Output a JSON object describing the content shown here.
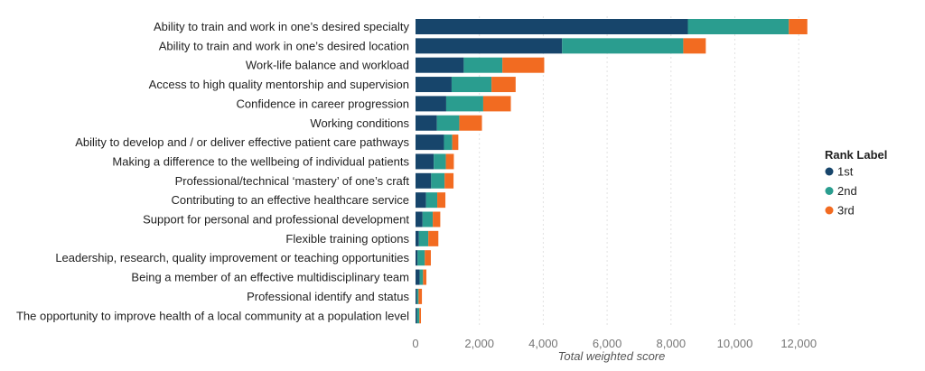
{
  "chart_data": {
    "type": "bar",
    "orientation": "horizontal",
    "stacked": true,
    "categories": [
      "Ability to train and work in one’s desired specialty",
      "Ability to train and work in one’s desired location",
      "Work-life balance and workload",
      "Access to high quality mentorship and supervision",
      "Confidence in career progression",
      "Working conditions",
      "Ability to develop and / or deliver effective patient care pathways",
      "Making a difference to the wellbeing of individual patients",
      "Professional/technical ‘mastery’ of one’s craft",
      "Contributing to an effective healthcare service",
      "Support for personal and professional development",
      "Flexible training options",
      "Leadership, research, quality improvement or teaching opportunities",
      "Being a member of an effective multidisciplinary team",
      "Professional identify and status",
      "The opportunity to improve health of a local community at a population level"
    ],
    "series": [
      {
        "name": "1st",
        "color": "#17456b",
        "values": [
          8530,
          4590,
          1510,
          1130,
          960,
          670,
          890,
          570,
          490,
          330,
          220,
          105,
          65,
          130,
          40,
          45
        ]
      },
      {
        "name": "2nd",
        "color": "#2a9d8f",
        "values": [
          3160,
          3795,
          1210,
          1250,
          1160,
          700,
          260,
          380,
          420,
          350,
          320,
          295,
          225,
          105,
          55,
          75
        ]
      },
      {
        "name": "3rd",
        "color": "#f26b21",
        "values": [
          580,
          705,
          1310,
          755,
          865,
          710,
          190,
          250,
          280,
          255,
          235,
          315,
          190,
          105,
          105,
          50
        ]
      }
    ],
    "xlabel": "Total weighted score",
    "xlim": [
      0,
      12600
    ],
    "xticks": [
      0,
      2000,
      4000,
      6000,
      8000,
      10000,
      12000
    ],
    "xtick_labels": [
      "0",
      "2,000",
      "4,000",
      "6,000",
      "8,000",
      "10,000",
      "12,000"
    ],
    "grid": "vertical dotted",
    "legend": {
      "title": "Rank Label",
      "position": "right"
    }
  }
}
